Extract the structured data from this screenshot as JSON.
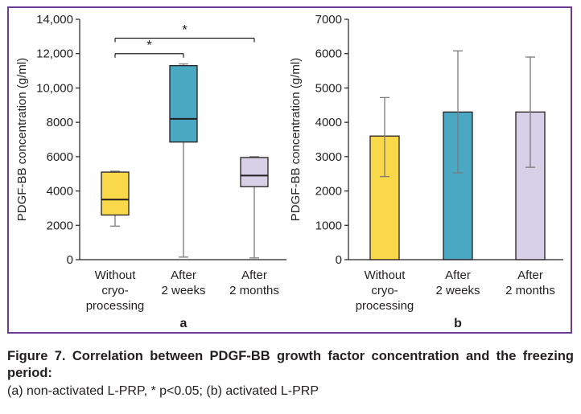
{
  "caption": {
    "title": "Figure 7. Correlation between PDGF-BB growth factor concentration and the freezing period:",
    "subtitle": "(a) non-activated L-PRP, * p<0.05; (b) activated L-PRP"
  },
  "colors": {
    "frame": "#6b3b96",
    "without": "#f9d94a",
    "weeks": "#4ba8c2",
    "months": "#d8d0e6"
  },
  "chart_data": [
    {
      "type": "box",
      "panel_label": "a",
      "ylabel": "PDGF-BB concentration (g/ml)",
      "ylim": [
        0,
        14000
      ],
      "yticks": [
        {
          "v": 0,
          "label": "0"
        },
        {
          "v": 2000,
          "label": "2000"
        },
        {
          "v": 4000,
          "label": "4000"
        },
        {
          "v": 6000,
          "label": "6000"
        },
        {
          "v": 8000,
          "label": "8000"
        },
        {
          "v": 10000,
          "label": "10,000"
        },
        {
          "v": 12000,
          "label": "12,000"
        },
        {
          "v": 14000,
          "label": "14,000"
        }
      ],
      "categories": [
        {
          "lines": [
            "Without",
            "cryo-",
            "processing"
          ],
          "min": 1950,
          "q1": 2600,
          "median": 3500,
          "q3": 5100,
          "max": 5150,
          "color": "#f9d94a"
        },
        {
          "lines": [
            "After",
            "2 weeks"
          ],
          "min": 150,
          "q1": 6850,
          "median": 8200,
          "q3": 11300,
          "max": 11400,
          "color": "#4ba8c2"
        },
        {
          "lines": [
            "After",
            "2 months"
          ],
          "min": 100,
          "q1": 4250,
          "median": 4900,
          "q3": 5950,
          "max": 6000,
          "color": "#d8d0e6"
        }
      ],
      "significance": [
        {
          "from": 0,
          "to": 1,
          "label": "*",
          "y": 12000
        },
        {
          "from": 0,
          "to": 2,
          "label": "*",
          "y": 12900
        }
      ]
    },
    {
      "type": "bar",
      "panel_label": "b",
      "ylabel": "PDGF-BB concentration (g/ml)",
      "ylim": [
        0,
        7000
      ],
      "yticks": [
        {
          "v": 0,
          "label": "0"
        },
        {
          "v": 1000,
          "label": "1000"
        },
        {
          "v": 2000,
          "label": "2000"
        },
        {
          "v": 3000,
          "label": "3000"
        },
        {
          "v": 4000,
          "label": "4000"
        },
        {
          "v": 5000,
          "label": "5000"
        },
        {
          "v": 6000,
          "label": "6000"
        },
        {
          "v": 7000,
          "label": "7000"
        }
      ],
      "categories": [
        {
          "lines": [
            "Without",
            "cryo-",
            "processing"
          ],
          "value": 3600,
          "err_low": 2420,
          "err_high": 4720,
          "color": "#f9d94a"
        },
        {
          "lines": [
            "After",
            "2 weeks"
          ],
          "value": 4300,
          "err_low": 2530,
          "err_high": 6080,
          "color": "#4ba8c2"
        },
        {
          "lines": [
            "After",
            "2 months"
          ],
          "value": 4300,
          "err_low": 2690,
          "err_high": 5900,
          "color": "#d8d0e6"
        }
      ]
    }
  ]
}
